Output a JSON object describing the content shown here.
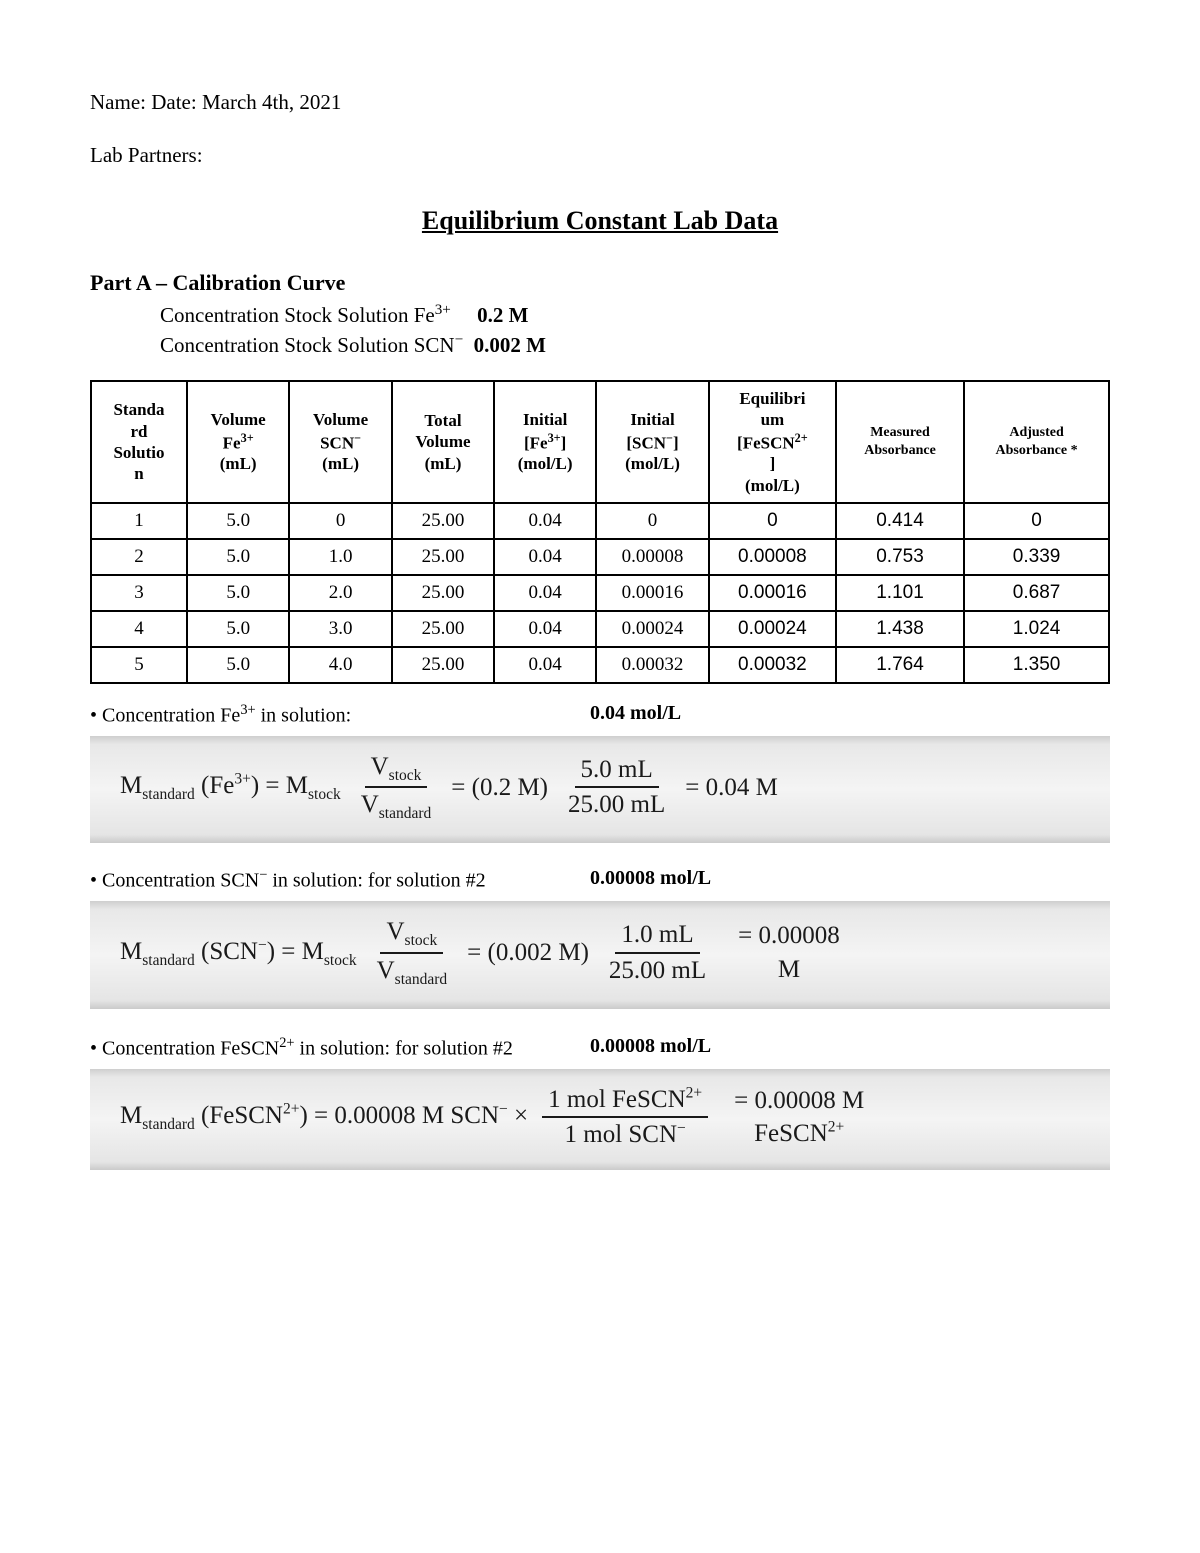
{
  "header": {
    "name_date": "Name: Date: March 4th, 2021",
    "partners": "Lab Partners:"
  },
  "title": "Equilibrium Constant Lab Data",
  "partA": {
    "heading": "Part A – Calibration Curve",
    "stock_fe_label": "Concentration Stock Solution Fe",
    "stock_fe_val": "0.2 M",
    "stock_scn_label": "Concentration Stock Solution SCN",
    "stock_scn_val": "0.002 M"
  },
  "table": {
    "headers": {
      "c1a": "Standa",
      "c1b": "rd",
      "c1c": "Solutio",
      "c1d": "n",
      "c2a": "Volume",
      "c2b": "Fe",
      "c2c": "(mL)",
      "c3a": "Volume",
      "c3b": "SCN",
      "c3c": "(mL)",
      "c4a": "Total",
      "c4b": "Volume",
      "c4c": "(mL)",
      "c5a": "Initial",
      "c5b": "[Fe",
      "c5c": "(mol/L)",
      "c6a": "Initial",
      "c6b": "[SCN",
      "c6c": "(mol/L)",
      "c7a": "Equilibri",
      "c7b": "um",
      "c7c": "[FeSCN",
      "c7d": "]",
      "c7e": "(mol/L)",
      "c8a": "Measured",
      "c8b": "Absorbance",
      "c9a": "Adjusted",
      "c9b": "Absorbance *"
    },
    "rows": [
      {
        "n": "1",
        "vfe": "5.0",
        "vscn": "0",
        "vtot": "25.00",
        "ife": "0.04",
        "iscn": "0",
        "eq": "0",
        "meas": "0.414",
        "adj": "0"
      },
      {
        "n": "2",
        "vfe": "5.0",
        "vscn": "1.0",
        "vtot": "25.00",
        "ife": "0.04",
        "iscn": "0.00008",
        "eq": "0.00008",
        "meas": "0.753",
        "adj": "0.339"
      },
      {
        "n": "3",
        "vfe": "5.0",
        "vscn": "2.0",
        "vtot": "25.00",
        "ife": "0.04",
        "iscn": "0.00016",
        "eq": "0.00016",
        "meas": "1.101",
        "adj": "0.687"
      },
      {
        "n": "4",
        "vfe": "5.0",
        "vscn": "3.0",
        "vtot": "25.00",
        "ife": "0.04",
        "iscn": "0.00024",
        "eq": "0.00024",
        "meas": "1.438",
        "adj": "1.024"
      },
      {
        "n": "5",
        "vfe": "5.0",
        "vscn": "4.0",
        "vtot": "25.00",
        "ife": "0.04",
        "iscn": "0.00032",
        "eq": "0.00032",
        "meas": "1.764",
        "adj": "1.350"
      }
    ]
  },
  "notes": {
    "fe_label": "• Concentration Fe",
    "fe_tail": " in solution:",
    "fe_val": "0.04 mol/L",
    "scn_label": "• Concentration SCN",
    "scn_tail": " in solution: for solution #2",
    "scn_val": "0.00008 mol/L",
    "fescn_label": "• Concentration FeSCN",
    "fescn_tail": " in solution: for solution #2",
    "fescn_val": "0.00008 mol/L"
  },
  "calc1": {
    "p1": "M",
    "p1s": "standard",
    "p2": " (Fe",
    "p2s": "3+",
    "p3": ") = M",
    "p3s": "stock",
    "f1n": "V",
    "f1ns": "stock",
    "f1d": "V",
    "f1ds": "standard",
    "p4": " = (0.2 M) ",
    "f2n": "5.0 mL",
    "f2d": "25.00 mL",
    "p5": " = 0.04 M"
  },
  "calc2": {
    "p1": "M",
    "p1s": "standard",
    "p2": " (SCN",
    "p2s": "−",
    "p3": ") = M",
    "p3s": "stock",
    "f1n": "V",
    "f1ns": "stock",
    "f1d": "V",
    "f1ds": "standard",
    "p4": " = (0.002 M) ",
    "f2n": "1.0 mL",
    "f2d": "25.00 mL",
    "p5n": "= 0.00008",
    "p5d": "M"
  },
  "calc3": {
    "p1": "M",
    "p1s": "standard",
    "p2": " (FeSCN",
    "p2s": "2+",
    "p3": ") = 0.00008 M SCN",
    "p3s": "−",
    "p4": " × ",
    "f1n": "1 mol FeSCN",
    "f1ns": "2+",
    "f1d": "1 mol  SCN",
    "f1ds": "−",
    "p5n": "= 0.00008 M",
    "p5d": "FeSCN",
    "p5ds": "2+"
  }
}
